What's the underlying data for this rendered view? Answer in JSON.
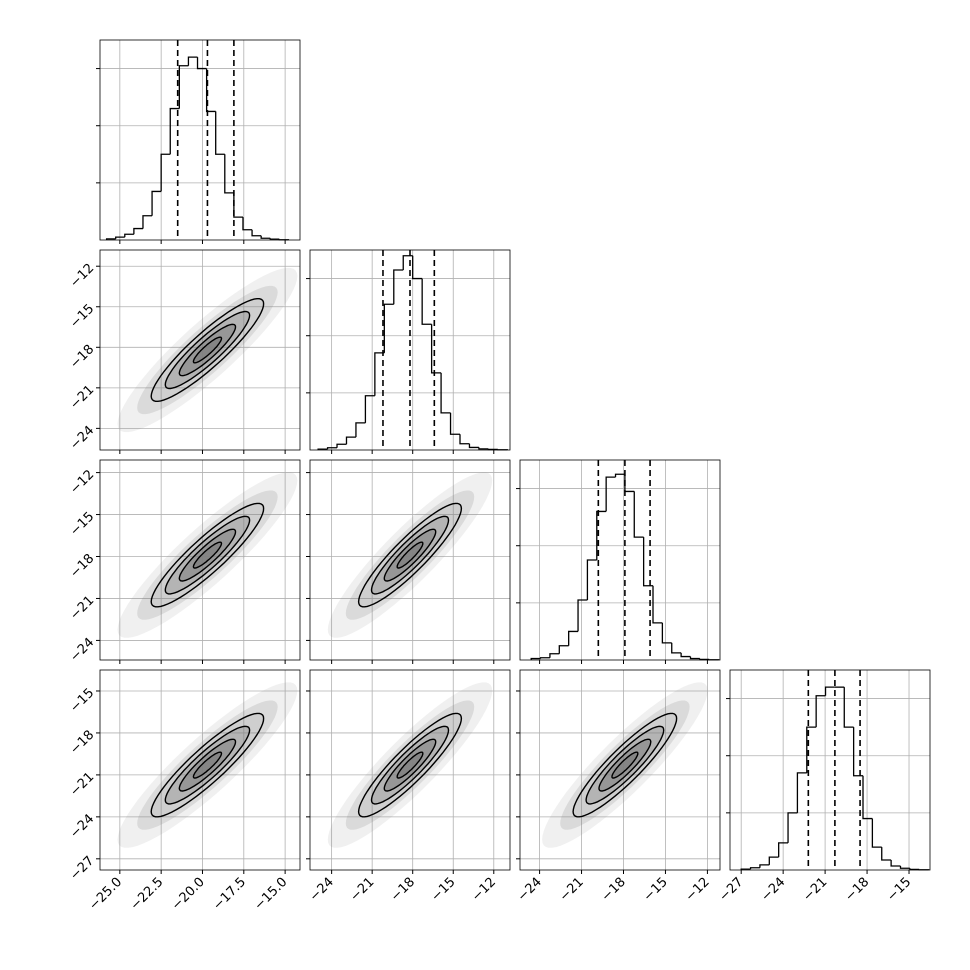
{
  "chart_data": {
    "type": "corner",
    "grid": true,
    "line_color": "#000000",
    "fill_color": "#808080",
    "correlation": 0.9,
    "contour_levels": [
      0.5,
      1,
      1.5,
      2
    ],
    "hist_ylim": [
      0,
      700
    ],
    "hist_yticks": [
      200,
      400,
      600
    ],
    "variables": [
      {
        "lim": [
          -26.2,
          -14.1
        ],
        "mean": -19.7,
        "sd": 1.7,
        "quantiles": [
          -21.5,
          -19.7,
          -18.1
        ],
        "ticks": [
          {
            "value": -25,
            "label": "−25.0"
          },
          {
            "value": -22.5,
            "label": "−22.5"
          },
          {
            "value": -20,
            "label": "−20.0"
          },
          {
            "value": -17.5,
            "label": "−17.5"
          },
          {
            "value": -15,
            "label": "−15.0"
          }
        ],
        "bins": [
          -25.8,
          -25.25,
          -24.7,
          -24.15,
          -23.6,
          -23.05,
          -22.5,
          -21.95,
          -21.4,
          -20.85,
          -20.3,
          -19.75,
          -19.2,
          -18.65,
          -18.1,
          -17.55,
          -17.0,
          -16.45,
          -15.9,
          -15.35,
          -14.8
        ],
        "counts": [
          4,
          10,
          20,
          40,
          85,
          170,
          300,
          460,
          610,
          640,
          600,
          450,
          300,
          165,
          80,
          36,
          15,
          6,
          3,
          1
        ]
      },
      {
        "lim": [
          -25.6,
          -10.8
        ],
        "mean": -18.2,
        "sd": 1.9,
        "quantiles": [
          -20.2,
          -18.2,
          -16.4
        ],
        "ticks": [
          {
            "value": -24,
            "label": "−24"
          },
          {
            "value": -21,
            "label": "−21"
          },
          {
            "value": -18,
            "label": "−18"
          },
          {
            "value": -15,
            "label": "−15"
          },
          {
            "value": -12,
            "label": "−12"
          }
        ],
        "bins": [
          -25.0,
          -24.3,
          -23.6,
          -22.9,
          -22.2,
          -21.5,
          -20.8,
          -20.1,
          -19.4,
          -18.7,
          -18.0,
          -17.3,
          -16.6,
          -15.9,
          -15.2,
          -14.5,
          -13.8,
          -13.1,
          -12.4,
          -11.7,
          -11.0
        ],
        "counts": [
          3,
          8,
          20,
          45,
          95,
          190,
          340,
          510,
          630,
          680,
          600,
          440,
          270,
          130,
          55,
          22,
          9,
          4,
          2,
          1
        ]
      },
      {
        "lim": [
          -25.4,
          -11.1
        ],
        "mean": -17.9,
        "sd": 1.85,
        "quantiles": [
          -19.8,
          -17.9,
          -16.1
        ],
        "ticks": [
          {
            "value": -24,
            "label": "−24"
          },
          {
            "value": -21,
            "label": "−21"
          },
          {
            "value": -18,
            "label": "−18"
          },
          {
            "value": -15,
            "label": "−15"
          },
          {
            "value": -12,
            "label": "−12"
          }
        ],
        "bins": [
          -24.6,
          -23.93,
          -23.26,
          -22.59,
          -21.92,
          -21.25,
          -20.58,
          -19.91,
          -19.24,
          -18.57,
          -17.9,
          -17.23,
          -16.56,
          -15.89,
          -15.22,
          -14.55,
          -13.88,
          -13.21,
          -12.54,
          -11.87,
          -11.2
        ],
        "counts": [
          5,
          8,
          22,
          50,
          100,
          210,
          350,
          520,
          640,
          650,
          590,
          430,
          260,
          130,
          60,
          25,
          12,
          5,
          2,
          1
        ]
      },
      {
        "lim": [
          -27.8,
          -13.5
        ],
        "mean": -20.3,
        "sd": 1.85,
        "quantiles": [
          -22.2,
          -20.3,
          -18.5
        ],
        "ticks": [
          {
            "value": -27,
            "label": "−27"
          },
          {
            "value": -24,
            "label": "−24"
          },
          {
            "value": -21,
            "label": "−21"
          },
          {
            "value": -18,
            "label": "−18"
          },
          {
            "value": -15,
            "label": "−15"
          }
        ],
        "bins": [
          -27.0,
          -26.33,
          -25.66,
          -24.99,
          -24.32,
          -23.65,
          -22.98,
          -22.31,
          -21.64,
          -20.97,
          -20.3,
          -19.63,
          -18.96,
          -18.29,
          -17.62,
          -16.95,
          -16.28,
          -15.61,
          -14.94,
          -14.27,
          -13.6
        ],
        "counts": [
          3,
          8,
          18,
          45,
          95,
          200,
          340,
          500,
          610,
          640,
          640,
          500,
          330,
          180,
          80,
          35,
          14,
          6,
          2,
          1
        ]
      }
    ]
  }
}
